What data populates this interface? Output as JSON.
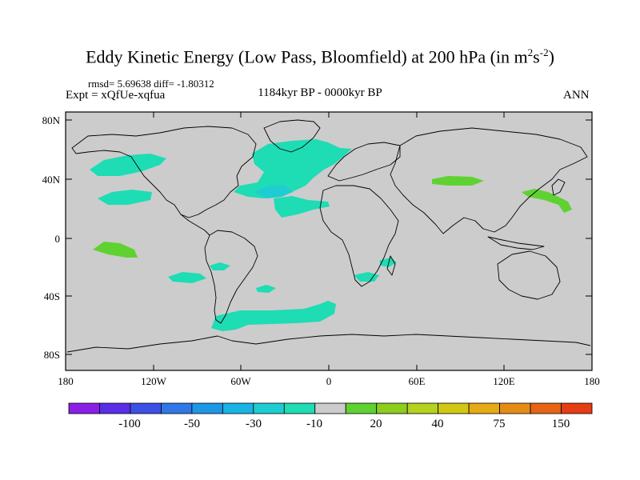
{
  "title": {
    "main": "Eddy Kinetic Energy (Low Pass, Bloomfield) at 200 hPa (in m",
    "sup1": "2",
    "mid": "s",
    "sup2": "-2",
    "end": ")"
  },
  "stats": {
    "rmsd_label": "rmsd=",
    "rmsd": "5.69638",
    "diff_label": "diff=",
    "diff": "-1.80312"
  },
  "experiment": "Expt = xQfUe-xqfua",
  "period": "1184kyr BP - 0000kyr BP",
  "season": "ANN",
  "lat_labels": [
    "80N",
    "40N",
    "0",
    "40S",
    "80S"
  ],
  "lon_labels": [
    "180",
    "120W",
    "60W",
    "0",
    "60E",
    "120E",
    "180"
  ],
  "colorbar": {
    "colors": [
      "#8a1ee6",
      "#5a2ee6",
      "#3c50e6",
      "#2f78e6",
      "#1e96e6",
      "#19b4e6",
      "#1ecdd2",
      "#1edcb4",
      "#cccccc",
      "#5fd232",
      "#8ccd1e",
      "#b4d21e",
      "#d2c814",
      "#e6aa14",
      "#e68c14",
      "#e66414",
      "#e63c14"
    ],
    "labels": [
      "-100",
      "-50",
      "-30",
      "-10",
      "20",
      "40",
      "75",
      "150"
    ]
  },
  "colors": {
    "land_ocean": "#cccccc",
    "cyan_anomaly": "#1edcb4",
    "blue_anomaly": "#1ecdd2",
    "green_anomaly": "#5fd232",
    "coastline": "#000000"
  }
}
